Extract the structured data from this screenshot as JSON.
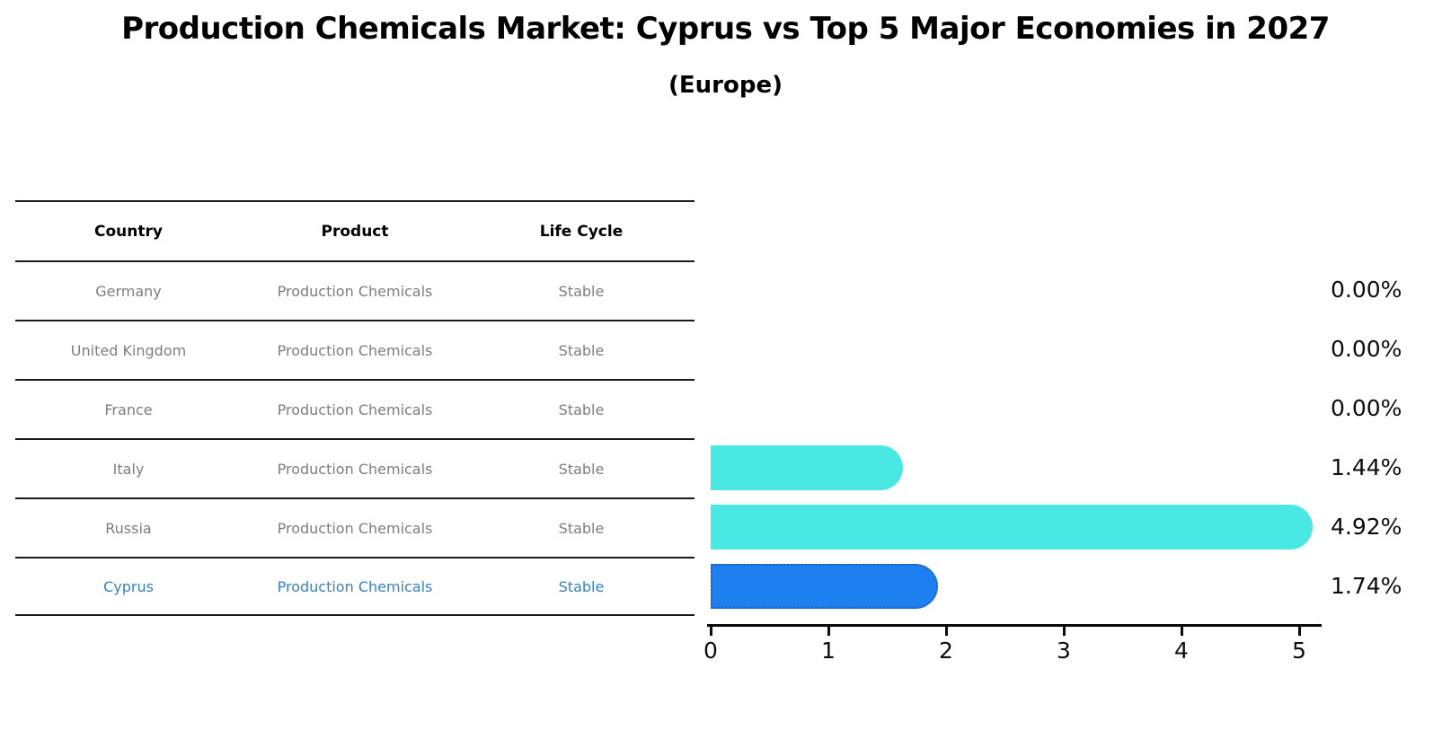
{
  "title": "Production Chemicals Market: Cyprus vs Top 5 Major Economies in 2027",
  "subtitle": "(Europe)",
  "table": {
    "headers": [
      "Country",
      "Product",
      "Life Cycle"
    ],
    "rows": [
      {
        "country": "Germany",
        "product": "Production Chemicals",
        "life_cycle": "Stable",
        "highlight": false
      },
      {
        "country": "United Kingdom",
        "product": "Production Chemicals",
        "life_cycle": "Stable",
        "highlight": false
      },
      {
        "country": "France",
        "product": "Production Chemicals",
        "life_cycle": "Stable",
        "highlight": false
      },
      {
        "country": "Italy",
        "product": "Production Chemicals",
        "life_cycle": "Stable",
        "highlight": false
      },
      {
        "country": "Russia",
        "product": "Production Chemicals",
        "life_cycle": "Stable",
        "highlight": false
      },
      {
        "country": "Cyprus",
        "product": "Production Chemicals",
        "life_cycle": "Stable",
        "highlight": true
      }
    ]
  },
  "chart_data": {
    "type": "bar",
    "orientation": "horizontal",
    "title": "Production Chemicals Market: Cyprus vs Top 5 Major Economies in 2027",
    "subtitle": "(Europe)",
    "categories": [
      "Germany",
      "United Kingdom",
      "France",
      "Italy",
      "Russia",
      "Cyprus"
    ],
    "values": [
      0.0,
      0.0,
      0.0,
      1.44,
      4.92,
      1.74
    ],
    "value_labels": [
      "0.00%",
      "0.00%",
      "0.00%",
      "1.44%",
      "4.92%",
      "1.74%"
    ],
    "unit": "percent",
    "xlim": [
      0,
      5
    ],
    "x_ticks": [
      "0",
      "1",
      "2",
      "3",
      "4",
      "5"
    ],
    "grid": "off",
    "legend": "none",
    "highlight_index": 5,
    "bar_color": "#4ae8e2",
    "highlight_bar_color": "#1e80f0",
    "highlight_border_color": "#1a5fb4",
    "highlight_text_color": "#3a80c0",
    "axis_color": "#0a0a0a",
    "table_text_color": "#7d7d7d"
  }
}
